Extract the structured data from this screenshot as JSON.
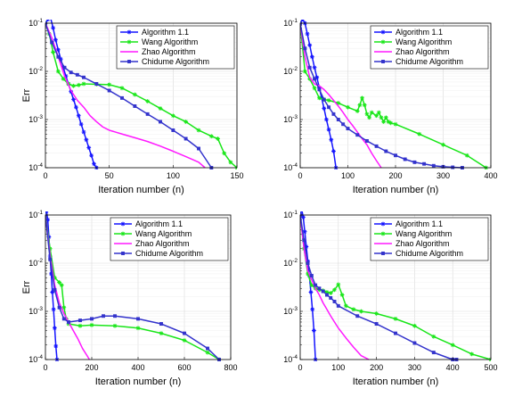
{
  "figure": {
    "background": "#ffffff",
    "series_styles": [
      {
        "name": "Algorithm 1.1",
        "color": "#1414ff",
        "marker": "star"
      },
      {
        "name": "Wang Algorithm",
        "color": "#19e619",
        "marker": "star"
      },
      {
        "name": "Zhao Algorithm",
        "color": "#ff19ff",
        "marker": "none"
      },
      {
        "name": "Chidume Algorithm",
        "color": "#3333cc",
        "marker": "square"
      }
    ]
  },
  "chart_data": [
    {
      "type": "line",
      "title": "",
      "xlabel": "Iteration number (n)",
      "ylabel": "Err",
      "yscale": "log",
      "xlim": [
        0,
        150
      ],
      "ylim": [
        0.0001,
        0.1
      ],
      "xticks": [
        0,
        50,
        100,
        150
      ],
      "grid": true,
      "legend_position": "top-right",
      "series": [
        {
          "name": "Algorithm 1.1",
          "x": [
            0,
            2,
            4,
            6,
            8,
            10,
            12,
            14,
            16,
            18,
            20,
            22,
            24,
            26,
            28,
            30,
            32,
            34,
            36,
            38,
            40
          ],
          "y": [
            0.1,
            0.12,
            0.13,
            0.08,
            0.045,
            0.028,
            0.018,
            0.012,
            0.008,
            0.0055,
            0.0038,
            0.0026,
            0.0018,
            0.0012,
            0.0008,
            0.00055,
            0.00038,
            0.00026,
            0.00018,
            0.00012,
            0.0001
          ]
        },
        {
          "name": "Wang Algorithm",
          "x": [
            0,
            3,
            6,
            10,
            14,
            18,
            22,
            26,
            30,
            40,
            50,
            60,
            70,
            80,
            90,
            100,
            110,
            120,
            130,
            135,
            140,
            145,
            150
          ],
          "y": [
            0.1,
            0.06,
            0.025,
            0.01,
            0.007,
            0.0055,
            0.005,
            0.0052,
            0.0055,
            0.0054,
            0.0053,
            0.0045,
            0.0033,
            0.0024,
            0.0017,
            0.0012,
            0.0009,
            0.0006,
            0.00045,
            0.0004,
            0.0002,
            0.00013,
            0.0001
          ]
        },
        {
          "name": "Zhao Algorithm",
          "x": [
            0,
            5,
            10,
            15,
            20,
            25,
            30,
            35,
            40,
            45,
            50,
            60,
            70,
            80,
            90,
            100,
            110,
            120,
            125
          ],
          "y": [
            0.1,
            0.05,
            0.02,
            0.008,
            0.004,
            0.0025,
            0.0018,
            0.0012,
            0.0009,
            0.0007,
            0.0006,
            0.0005,
            0.00042,
            0.00035,
            0.00028,
            0.00022,
            0.00017,
            0.00013,
            0.0001
          ]
        },
        {
          "name": "Chidume Algorithm",
          "x": [
            0,
            5,
            10,
            15,
            20,
            25,
            30,
            40,
            50,
            60,
            70,
            80,
            90,
            100,
            110,
            120,
            130
          ],
          "y": [
            0.1,
            0.04,
            0.02,
            0.012,
            0.0095,
            0.0085,
            0.0075,
            0.0055,
            0.004,
            0.0028,
            0.0019,
            0.0013,
            0.0009,
            0.0006,
            0.0004,
            0.00025,
            0.0001
          ]
        }
      ]
    },
    {
      "type": "line",
      "title": "",
      "xlabel": "Iteration number (n)",
      "ylabel": "",
      "yscale": "log",
      "xlim": [
        0,
        400
      ],
      "ylim": [
        0.0001,
        0.1
      ],
      "xticks": [
        0,
        100,
        200,
        300,
        400
      ],
      "grid": true,
      "legend_position": "top-right",
      "series": [
        {
          "name": "Algorithm 1.1",
          "x": [
            0,
            5,
            10,
            15,
            20,
            25,
            30,
            35,
            40,
            45,
            50,
            55,
            60,
            65,
            70,
            75
          ],
          "y": [
            0.1,
            0.12,
            0.1,
            0.06,
            0.035,
            0.02,
            0.012,
            0.0075,
            0.0046,
            0.0028,
            0.0017,
            0.001,
            0.00062,
            0.00038,
            0.00022,
            0.0001
          ]
        },
        {
          "name": "Wang Algorithm",
          "x": [
            0,
            10,
            20,
            30,
            40,
            50,
            60,
            80,
            100,
            120,
            125,
            130,
            135,
            140,
            145,
            150,
            160,
            165,
            170,
            175,
            180,
            185,
            190,
            200,
            250,
            300,
            350,
            390
          ],
          "y": [
            0.1,
            0.01,
            0.007,
            0.0045,
            0.0028,
            0.0026,
            0.0025,
            0.0022,
            0.0018,
            0.0015,
            0.002,
            0.0028,
            0.002,
            0.0013,
            0.0011,
            0.0014,
            0.0012,
            0.0014,
            0.0011,
            0.0009,
            0.0011,
            0.0009,
            0.00085,
            0.0008,
            0.0005,
            0.0003,
            0.00018,
            0.0001
          ]
        },
        {
          "name": "Zhao Algorithm",
          "x": [
            0,
            10,
            20,
            30,
            40,
            50,
            60,
            70,
            80,
            90,
            100,
            110,
            120,
            130,
            140,
            150,
            160,
            170
          ],
          "y": [
            0.1,
            0.02,
            0.0075,
            0.0055,
            0.005,
            0.0042,
            0.0033,
            0.0025,
            0.0019,
            0.0014,
            0.001,
            0.00075,
            0.00055,
            0.0004,
            0.0003,
            0.0002,
            0.00014,
            0.0001
          ]
        },
        {
          "name": "Chidume Algorithm",
          "x": [
            0,
            10,
            20,
            30,
            40,
            50,
            60,
            70,
            80,
            90,
            100,
            120,
            140,
            160,
            180,
            200,
            220,
            240,
            260,
            280,
            300,
            320,
            340
          ],
          "y": [
            0.1,
            0.03,
            0.012,
            0.007,
            0.0042,
            0.0026,
            0.0018,
            0.0013,
            0.001,
            0.0008,
            0.00065,
            0.00048,
            0.00036,
            0.00028,
            0.00022,
            0.00018,
            0.00015,
            0.00013,
            0.00012,
            0.00011,
            0.000105,
            0.000102,
            0.0001
          ]
        }
      ]
    },
    {
      "type": "line",
      "title": "",
      "xlabel": "Iteration number (n)",
      "ylabel": "Err",
      "yscale": "log",
      "xlim": [
        0,
        800
      ],
      "ylim": [
        0.0001,
        0.1
      ],
      "xticks": [
        0,
        200,
        400,
        600,
        800
      ],
      "grid": true,
      "legend_position": "top-right",
      "series": [
        {
          "name": "Algorithm 1.1",
          "x": [
            0,
            5,
            10,
            15,
            20,
            25,
            30,
            35,
            40,
            45,
            50
          ],
          "y": [
            0.1,
            0.12,
            0.08,
            0.035,
            0.014,
            0.006,
            0.0025,
            0.0011,
            0.00045,
            0.00019,
            0.0001
          ]
        },
        {
          "name": "Wang Algorithm",
          "x": [
            0,
            20,
            40,
            60,
            70,
            80,
            90,
            100,
            150,
            200,
            300,
            400,
            500,
            600,
            700,
            750
          ],
          "y": [
            0.1,
            0.02,
            0.005,
            0.004,
            0.0035,
            0.0012,
            0.0007,
            0.00055,
            0.0005,
            0.00052,
            0.0005,
            0.00045,
            0.00035,
            0.00025,
            0.00014,
            0.0001
          ]
        },
        {
          "name": "Zhao Algorithm",
          "x": [
            0,
            20,
            40,
            60,
            80,
            100,
            120,
            140,
            160,
            180,
            190
          ],
          "y": [
            0.1,
            0.015,
            0.0035,
            0.0015,
            0.0009,
            0.0006,
            0.0004,
            0.00027,
            0.00017,
            0.00012,
            0.0001
          ]
        },
        {
          "name": "Chidume Algorithm",
          "x": [
            0,
            20,
            40,
            60,
            80,
            100,
            150,
            200,
            250,
            300,
            400,
            500,
            600,
            700,
            750
          ],
          "y": [
            0.1,
            0.012,
            0.0028,
            0.0012,
            0.0007,
            0.0006,
            0.00065,
            0.0007,
            0.0008,
            0.0008,
            0.0007,
            0.00055,
            0.00035,
            0.00017,
            0.0001
          ]
        }
      ]
    },
    {
      "type": "line",
      "title": "",
      "xlabel": "Iteration number (n)",
      "ylabel": "",
      "yscale": "log",
      "xlim": [
        0,
        500
      ],
      "ylim": [
        0.0001,
        0.1
      ],
      "xticks": [
        0,
        100,
        200,
        300,
        400,
        500
      ],
      "grid": true,
      "legend_position": "top-right",
      "series": [
        {
          "name": "Algorithm 1.1",
          "x": [
            0,
            4,
            8,
            12,
            16,
            20,
            24,
            28,
            32,
            36,
            40
          ],
          "y": [
            0.1,
            0.13,
            0.09,
            0.045,
            0.022,
            0.011,
            0.0055,
            0.0025,
            0.0011,
            0.0004,
            0.0001
          ]
        },
        {
          "name": "Wang Algorithm",
          "x": [
            0,
            10,
            20,
            30,
            40,
            50,
            60,
            70,
            80,
            90,
            100,
            110,
            120,
            140,
            160,
            200,
            250,
            300,
            350,
            400,
            450,
            500
          ],
          "y": [
            0.1,
            0.02,
            0.006,
            0.0035,
            0.003,
            0.0028,
            0.0027,
            0.0025,
            0.0024,
            0.0028,
            0.0036,
            0.0022,
            0.0013,
            0.0011,
            0.001,
            0.0009,
            0.0007,
            0.0005,
            0.0003,
            0.0002,
            0.00013,
            0.0001
          ]
        },
        {
          "name": "Zhao Algorithm",
          "x": [
            0,
            10,
            20,
            30,
            40,
            50,
            60,
            70,
            80,
            100,
            120,
            140,
            160,
            180
          ],
          "y": [
            0.1,
            0.02,
            0.007,
            0.0045,
            0.003,
            0.0022,
            0.0015,
            0.0011,
            0.0008,
            0.00045,
            0.00028,
            0.00018,
            0.00012,
            0.0001
          ]
        },
        {
          "name": "Chidume Algorithm",
          "x": [
            0,
            10,
            20,
            30,
            40,
            50,
            60,
            70,
            80,
            90,
            100,
            150,
            200,
            250,
            300,
            350,
            400,
            410
          ],
          "y": [
            0.1,
            0.03,
            0.01,
            0.0055,
            0.0035,
            0.003,
            0.0026,
            0.0022,
            0.0019,
            0.0016,
            0.0013,
            0.0008,
            0.00055,
            0.00035,
            0.00022,
            0.00014,
            0.0001,
            0.0001
          ]
        }
      ]
    }
  ]
}
